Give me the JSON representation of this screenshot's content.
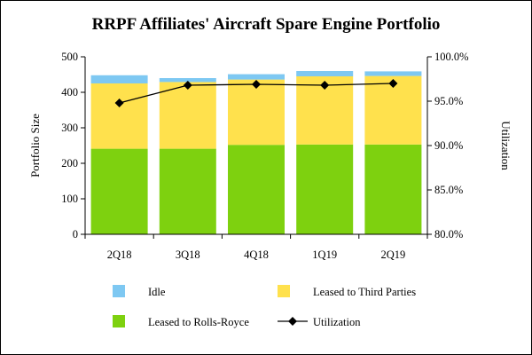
{
  "chart_data": {
    "type": "bar",
    "stacked": true,
    "title": "RRPF Affiliates' Aircraft Spare Engine Portfolio",
    "ylabel": "Portfolio Size",
    "y2label": "Utilization",
    "categories": [
      "2Q18",
      "3Q18",
      "4Q18",
      "1Q19",
      "2Q19"
    ],
    "ylim": [
      0,
      500
    ],
    "yticks": [
      "0",
      "100",
      "200",
      "300",
      "400",
      "500"
    ],
    "y2lim": [
      80.0,
      100.0
    ],
    "y2ticks": [
      "80.0%",
      "85.0%",
      "90.0%",
      "95.0%",
      "100.0%"
    ],
    "series": [
      {
        "name": "Leased to Rolls-Royce",
        "values": [
          241,
          241,
          252,
          253,
          253
        ],
        "color": "#7ed10f",
        "axis": "left",
        "kind": "bar"
      },
      {
        "name": "Leased to Third Parties",
        "values": [
          184,
          188,
          184,
          192,
          193
        ],
        "color": "#ffe14d",
        "axis": "left",
        "kind": "bar"
      },
      {
        "name": "Idle",
        "values": [
          23,
          11,
          15,
          15,
          13
        ],
        "color": "#7ec8f2",
        "axis": "left",
        "kind": "bar"
      },
      {
        "name": "Utilization",
        "values": [
          94.8,
          96.8,
          96.9,
          96.8,
          97.0
        ],
        "color": "#000000",
        "axis": "right",
        "kind": "line"
      }
    ],
    "legend": {
      "placement": "bottom",
      "items": [
        "Idle",
        "Leased to Third Parties",
        "Leased to Rolls-Royce",
        "Utilization"
      ]
    },
    "grid": false
  }
}
